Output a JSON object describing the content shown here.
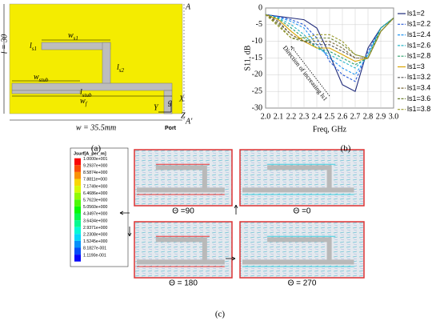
{
  "panel_labels": [
    "(a)",
    "(b)",
    "(c)"
  ],
  "figure_a": {
    "corner": "A",
    "corner_bottom": "A'",
    "length": "l = 30",
    "width": "w = 35.5mm",
    "ws1": {
      "main": "w",
      "sub": "s1"
    },
    "ls1": {
      "main": "l",
      "sub": "s1"
    },
    "ls2": {
      "main": "l",
      "sub": "s2"
    },
    "wstub": {
      "main": "w",
      "sub": "stub"
    },
    "lstub": {
      "main": "l",
      "sub": "stub"
    },
    "wf": {
      "main": "w",
      "sub": "f"
    },
    "g": "g",
    "axis_y": "Y",
    "axis_x": "X",
    "axis_z": "Z",
    "port": "Port"
  },
  "chart_data": {
    "type": "line",
    "xlabel": "Freq, GHz",
    "ylabel": "S11, dB",
    "annotation": "Direction of increasing ls1",
    "x": [
      2.0,
      2.1,
      2.2,
      2.3,
      2.4,
      2.5,
      2.6,
      2.7,
      2.8,
      2.9,
      3.0
    ],
    "xlim": [
      2.0,
      3.0
    ],
    "xticks": [
      {
        "value": 2.0,
        "label": "2.0"
      },
      {
        "value": 2.1,
        "label": "2.1"
      },
      {
        "value": 2.2,
        "label": "2.2"
      },
      {
        "value": 2.3,
        "label": "2.3"
      },
      {
        "value": 2.4,
        "label": "2.4"
      },
      {
        "value": 2.5,
        "label": "2.5"
      },
      {
        "value": 2.6,
        "label": "2.6"
      },
      {
        "value": 2.7,
        "label": "2.7"
      },
      {
        "value": 2.8,
        "label": "2.8"
      },
      {
        "value": 2.9,
        "label": "2.9"
      },
      {
        "value": 3.0,
        "label": "3.0"
      }
    ],
    "ylim": [
      -30,
      0
    ],
    "yticks": [
      -30,
      -25,
      -20,
      -15,
      -10,
      -5,
      0
    ],
    "legend": "right",
    "series": [
      {
        "name": "ls1=2",
        "color": "#1f2a7a",
        "style": "solid",
        "values": [
          -2,
          -2.5,
          -3,
          -3.5,
          -6,
          -14,
          -23,
          -25,
          -12,
          -6,
          -3
        ]
      },
      {
        "name": "ls1=2.2",
        "color": "#2a5bd7",
        "style": "dashed",
        "values": [
          -2,
          -2.6,
          -3.5,
          -5,
          -9,
          -16,
          -20,
          -22,
          -13,
          -6,
          -3
        ]
      },
      {
        "name": "ls1=2.4",
        "color": "#2196f3",
        "style": "dashed",
        "values": [
          -2,
          -2.8,
          -4,
          -6,
          -11,
          -15,
          -18,
          -20,
          -14,
          -6,
          -3
        ]
      },
      {
        "name": "ls1=2.6",
        "color": "#26b5c9",
        "style": "dashed",
        "values": [
          -2,
          -3,
          -5,
          -8,
          -12,
          -14,
          -16,
          -18,
          -14,
          -6,
          -3
        ]
      },
      {
        "name": "ls1=2.8",
        "color": "#2aa06a",
        "style": "dashed",
        "values": [
          -2,
          -3.2,
          -6,
          -9,
          -12,
          -13,
          -15,
          -17,
          -15,
          -6,
          -3
        ]
      },
      {
        "name": "ls1=3",
        "color": "#d9a400",
        "style": "solid",
        "values": [
          -2,
          -3.5,
          -7,
          -10,
          -12,
          -12,
          -14,
          -16,
          -15,
          -7,
          -3
        ]
      },
      {
        "name": "ls1=3.2",
        "color": "#555555",
        "style": "dashed",
        "values": [
          -2,
          -4,
          -8,
          -10,
          -11,
          -11,
          -13,
          -15,
          -15,
          -7,
          -3
        ]
      },
      {
        "name": "ls1=3.4",
        "color": "#7a6a3a",
        "style": "dashed",
        "values": [
          -2,
          -4.5,
          -8,
          -10,
          -10,
          -10,
          -12,
          -15,
          -15,
          -7,
          -3
        ]
      },
      {
        "name": "ls1=3.6",
        "color": "#6b7f2e",
        "style": "dashed",
        "values": [
          -2,
          -5,
          -9,
          -10,
          -9,
          -9,
          -11,
          -14,
          -15,
          -7,
          -3
        ]
      },
      {
        "name": "ls1=3.8",
        "color": "#9a9a2a",
        "style": "dashed",
        "values": [
          -2,
          -5.5,
          -9,
          -9,
          -8,
          -8,
          -10,
          -14,
          -15,
          -7,
          -3
        ]
      }
    ]
  },
  "figure_c": {
    "colorbar_title": "Jsurf[A_per_m]",
    "colorbar_labels": [
      "1.0000e+001",
      "9.2937e+000",
      "8.5874e+000",
      "7.8811e+000",
      "7.1749e+000",
      "6.4686e+000",
      "5.7623e+000",
      "5.0560e+000",
      "4.3497e+000",
      "3.6434e+000",
      "2.9371e+000",
      "2.2308e+000",
      "1.5245e+000",
      "8.1827e-001",
      "1.1190e-001"
    ],
    "theta_labels": [
      "Θ =90",
      "Θ =0",
      "Θ = 180",
      "Θ = 270"
    ]
  }
}
